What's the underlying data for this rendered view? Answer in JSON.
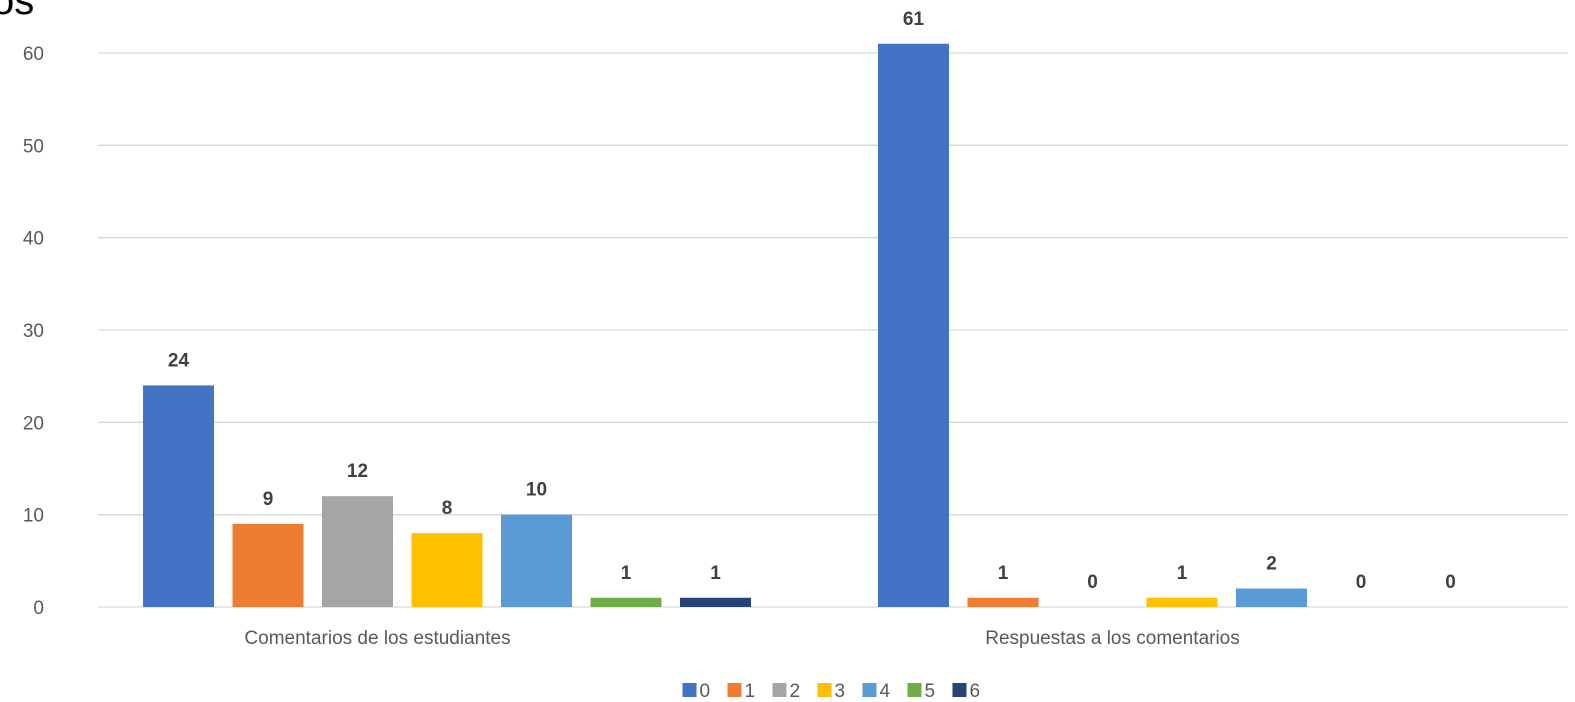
{
  "chart_data": {
    "type": "bar",
    "title": "os",
    "categories": [
      "Comentarios de los estudiantes",
      "Respuestas a los comentarios"
    ],
    "series": [
      {
        "name": "0",
        "values": [
          24,
          61
        ],
        "color": "#4472C4"
      },
      {
        "name": "1",
        "values": [
          9,
          1
        ],
        "color": "#ED7D31"
      },
      {
        "name": "2",
        "values": [
          12,
          0
        ],
        "color": "#A5A5A5"
      },
      {
        "name": "3",
        "values": [
          8,
          1
        ],
        "color": "#FFC000"
      },
      {
        "name": "4",
        "values": [
          10,
          2
        ],
        "color": "#5B9BD5"
      },
      {
        "name": "5",
        "values": [
          1,
          0
        ],
        "color": "#70AD47"
      },
      {
        "name": "6",
        "values": [
          1,
          0
        ],
        "color": "#264478"
      }
    ],
    "ylim": [
      0,
      60
    ],
    "yticks": [
      0,
      10,
      20,
      30,
      40,
      50,
      60
    ],
    "grid": true,
    "legend": "bottom",
    "data_labels": true
  }
}
